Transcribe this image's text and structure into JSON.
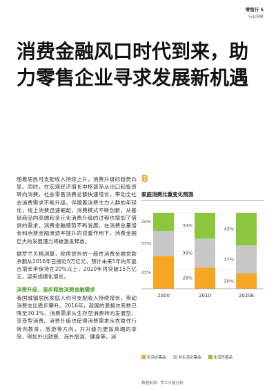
{
  "header": {
    "section": "零售行 5",
    "subtitle": "行业洞察"
  },
  "title": "消费金融风口时代到来，助力零售企业寻求发展新机遇",
  "body": {
    "paragraphs": [
      "随着居民可支配收入持续上升，消费升级的趋势凸显。同时，在宏观经济增长中枢逐渐从出口和投资转向消费，社会零售消费总额快速增长，带动全社会消费需求不断升级。伴随着消费主力人群的年轻化，线上消费迅速崛起，消费模式不断创新，从基础商品向高端和多元化消费升级的过程也增加了借贷的需求。消费金融顺势不断发展，在消费总量增长和消费金融渗透率提升的双重作用下，消费金融巨大的发展潜力将被激发释放。",
      "据罗兰贝格测算，除房贷外的一般性消费金融贷款余额从2016年已接近5万亿元，预计未来5年的年复合增长率保持在20%以上，2020年将突破15万亿元，迎来规模化增长。"
    ],
    "subhead": "消费升级，逐步释放消费金融需求",
    "after_subhead": "我国城镇居民家庭人均可支配收入持续增长，带动消费支出稳步攀升。2016年，我国的恩格尔系数已降至30.1%，消费需求从生存型消费转向发展型、享受型消费。消费升级也使得消费需求从衣食住行转向教育、旅游等方向，并升级为更加高端的享受，例如外出就餐、海外旅游、健身等，消"
  },
  "chart": {
    "letter": "B",
    "title": "家庭消费比重变化预测",
    "source": "数据来源：罗兰贝格分析"
  },
  "chart_data": {
    "type": "bar",
    "categories": [
      "2000",
      "2010",
      "2020E"
    ],
    "series": [
      {
        "name": "生活必需品",
        "color": "#f5a623",
        "values": [
          43,
          28,
          20
        ]
      },
      {
        "name": "非生活必需品",
        "color": "#c7c7c7",
        "values": [
          33,
          38,
          37
        ]
      },
      {
        "name": "生活改善品",
        "color": "#8cc63f",
        "values": [
          24,
          34,
          43
        ]
      }
    ],
    "value_labels": [
      [
        "43%",
        "28%",
        "20%"
      ],
      [
        "33%",
        "38%",
        "37%"
      ],
      [
        "24%",
        "34%",
        "43%"
      ]
    ],
    "stacked": true,
    "percent": true,
    "ylim": [
      0,
      100
    ],
    "legend_position": "bottom"
  }
}
